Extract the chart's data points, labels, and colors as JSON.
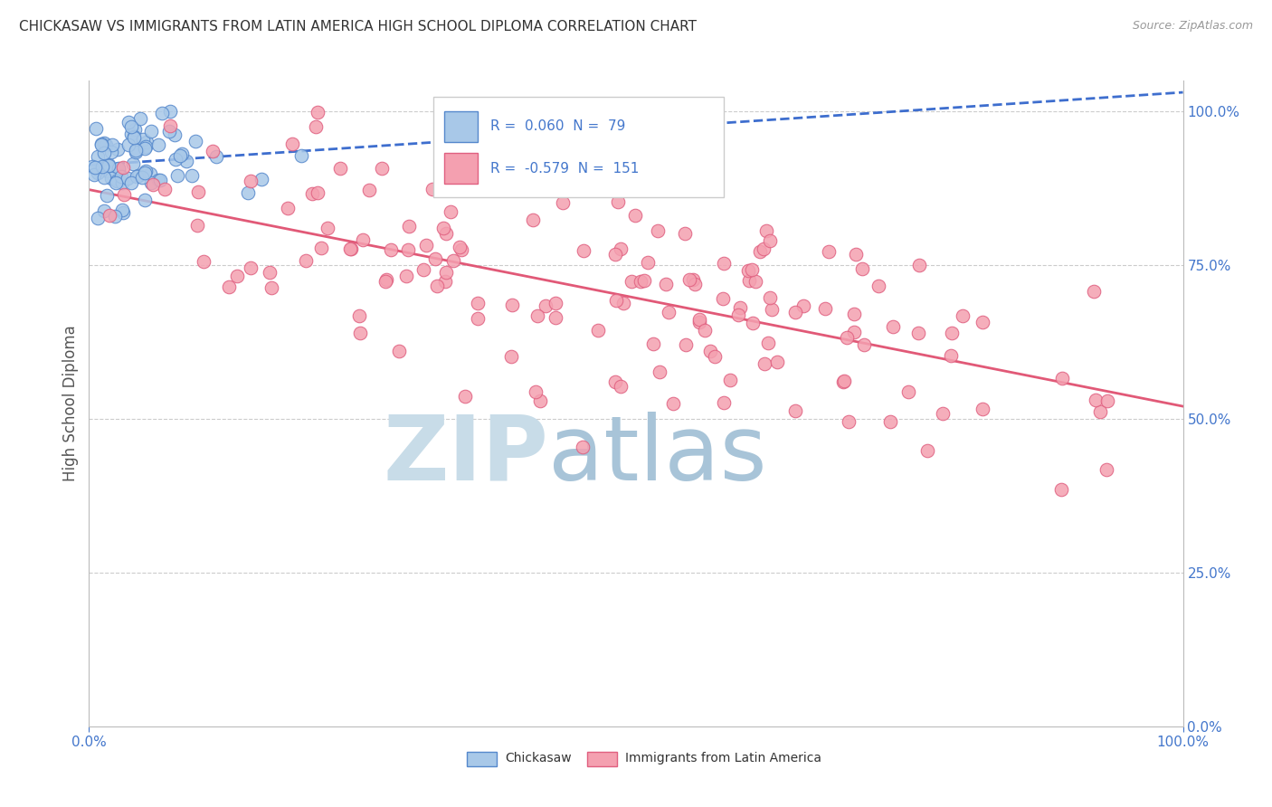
{
  "title": "CHICKASAW VS IMMIGRANTS FROM LATIN AMERICA HIGH SCHOOL DIPLOMA CORRELATION CHART",
  "source": "Source: ZipAtlas.com",
  "ylabel": "High School Diploma",
  "legend_blue_r_val": "0.060",
  "legend_blue_n_val": "79",
  "legend_pink_r_val": "-0.579",
  "legend_pink_n_val": "151",
  "blue_fill": "#A8C8E8",
  "blue_edge": "#5588CC",
  "pink_fill": "#F4A0B0",
  "pink_edge": "#E06080",
  "blue_line_color": "#3366CC",
  "pink_line_color": "#E05070",
  "grid_color": "#CCCCCC",
  "background_color": "#FFFFFF",
  "title_color": "#333333",
  "tick_color": "#4477CC",
  "watermark_zip": "ZIP",
  "watermark_atlas": "atlas",
  "watermark_zip_color": "#C8DCE8",
  "watermark_atlas_color": "#A8C4D8",
  "title_fontsize": 11,
  "source_fontsize": 9,
  "axis_fontsize": 11
}
